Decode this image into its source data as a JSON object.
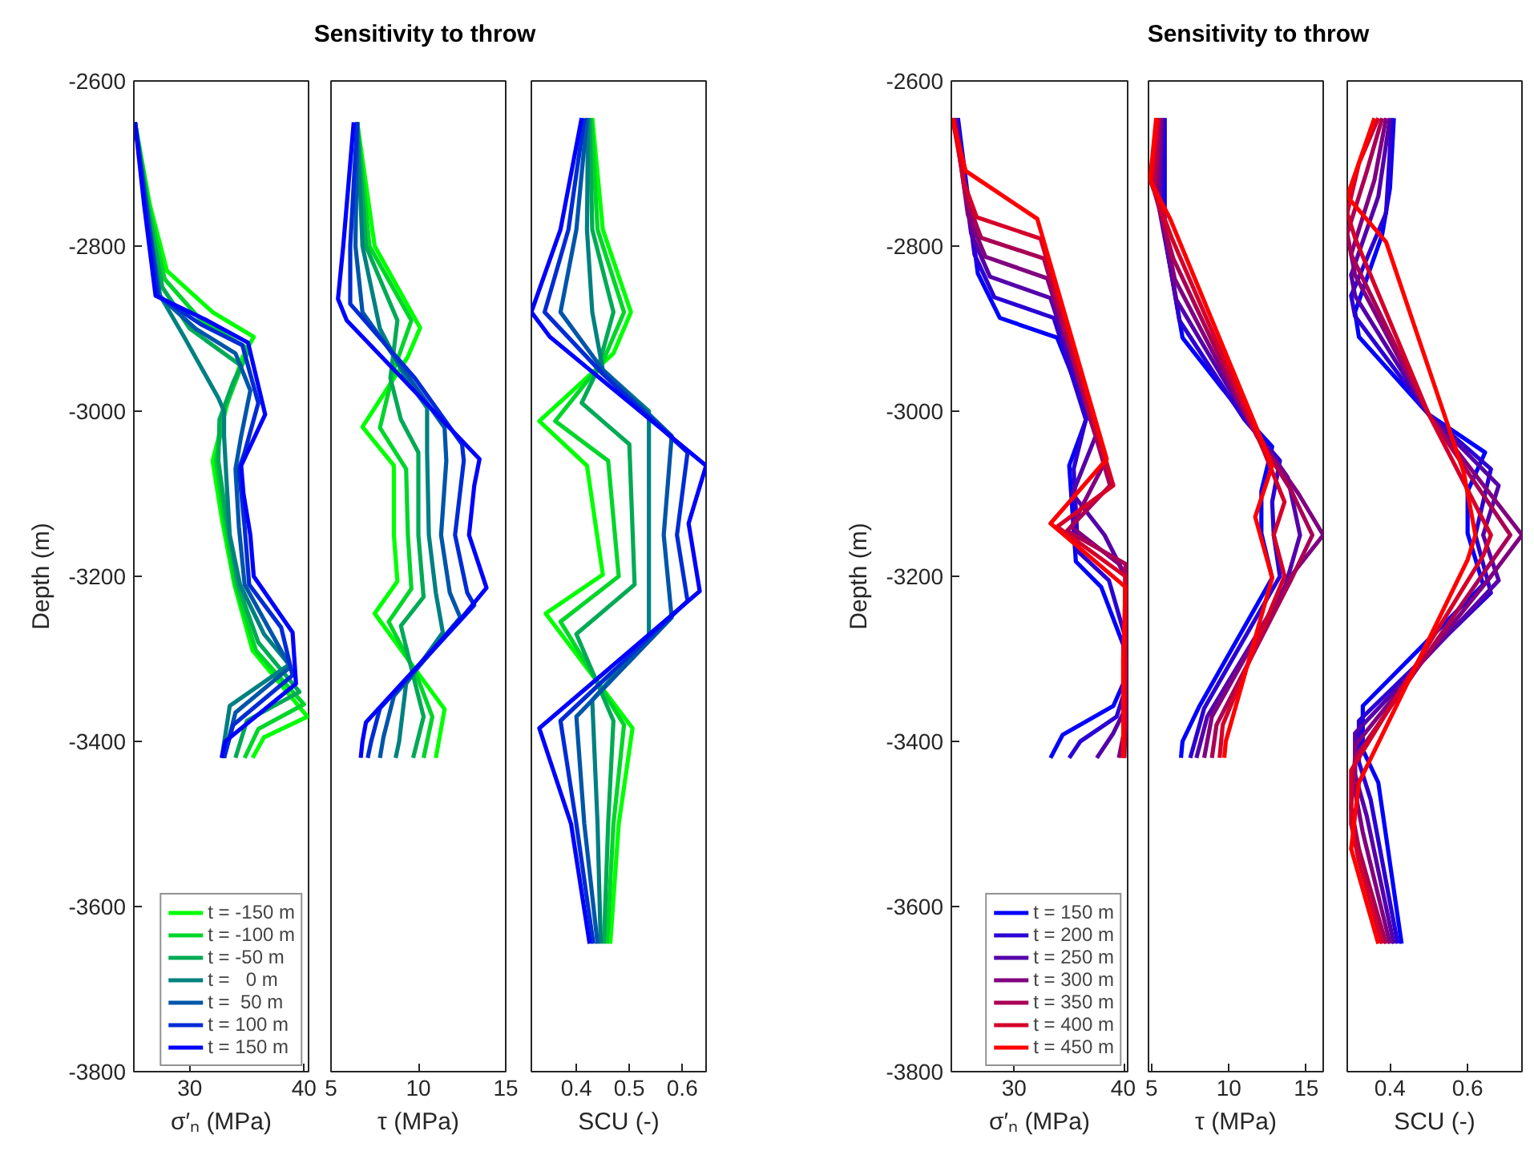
{
  "chart_data": [
    {
      "type": "line",
      "xlabel": "σ′ₙ (MPa)",
      "ylabel": "Depth (m)",
      "xlim": [
        25.1,
        40.4
      ],
      "ylim": [
        -3800,
        -2600
      ],
      "xticks": [
        30,
        40
      ],
      "yticks": [
        -3800,
        -3600,
        -3400,
        -3200,
        -3000,
        -2800,
        -2600
      ],
      "legend": "bottom right",
      "series": [
        {
          "name": "t = -150 m",
          "color": "#00ff00",
          "x": [
            25.2,
            26.5,
            28.0,
            32.0,
            35.6,
            34.6,
            33.3,
            32.0,
            32.8,
            33.9,
            35.5,
            40.3,
            36.5,
            35.5
          ],
          "values": [
            -2650,
            -2750,
            -2830,
            -2880,
            -2910,
            -2935,
            -2990,
            -3060,
            -3130,
            -3210,
            -3290,
            -3370,
            -3395,
            -3420
          ]
        },
        {
          "name": "t = -100 m",
          "color": "#00d52a",
          "x": [
            25.2,
            26.4,
            27.8,
            31.0,
            35.2,
            34.4,
            33.0,
            32.3,
            33.0,
            34.0,
            35.8,
            40.0,
            36.0,
            34.8
          ],
          "values": [
            -2650,
            -2750,
            -2840,
            -2890,
            -2925,
            -2950,
            -3000,
            -3060,
            -3130,
            -3210,
            -3290,
            -3355,
            -3385,
            -3420
          ]
        },
        {
          "name": "t = -50 m",
          "color": "#00aa55",
          "x": [
            25.2,
            26.3,
            27.6,
            30.0,
            34.5,
            33.8,
            32.6,
            32.5,
            33.2,
            34.2,
            36.0,
            39.6,
            35.0,
            34.0
          ],
          "values": [
            -2650,
            -2750,
            -2850,
            -2900,
            -2945,
            -2965,
            -3010,
            -3060,
            -3130,
            -3210,
            -3280,
            -3340,
            -3375,
            -3420
          ]
        },
        {
          "name": "t =   0 m",
          "color": "#008080",
          "x": [
            25.2,
            26.2,
            27.4,
            29.5,
            32.5,
            33.0,
            33.0,
            33.2,
            33.5,
            34.4,
            36.5,
            38.7,
            33.5,
            32.8
          ],
          "values": [
            -2650,
            -2750,
            -2860,
            -2910,
            -2984,
            -3000,
            -3030,
            -3080,
            -3150,
            -3210,
            -3270,
            -3307,
            -3357,
            -3420
          ]
        },
        {
          "name": "t =  50 m",
          "color": "#0055aa",
          "x": [
            25.2,
            26.2,
            27.3,
            30.5,
            34.0,
            35.3,
            34.5,
            34.0,
            34.3,
            34.8,
            37.0,
            38.8,
            34.0,
            33.0
          ],
          "values": [
            -2650,
            -2750,
            -2860,
            -2900,
            -2930,
            -2975,
            -3030,
            -3070,
            -3140,
            -3210,
            -3265,
            -3310,
            -3365,
            -3420
          ]
        },
        {
          "name": "t = 100 m",
          "color": "#002bd5",
          "x": [
            25.2,
            26.1,
            27.2,
            31.0,
            34.6,
            36.0,
            34.8,
            34.3,
            34.8,
            35.2,
            38.0,
            39.0,
            33.8,
            33.0
          ],
          "values": [
            -2650,
            -2750,
            -2860,
            -2895,
            -2920,
            -2990,
            -3050,
            -3070,
            -3140,
            -3210,
            -3262,
            -3320,
            -3380,
            -3420
          ]
        },
        {
          "name": "t = 150 m",
          "color": "#0000ff",
          "x": [
            25.2,
            26.0,
            27.0,
            31.5,
            35.1,
            36.6,
            34.5,
            34.7,
            35.3,
            35.6,
            39.0,
            39.3,
            33.1,
            32.8
          ],
          "values": [
            -2650,
            -2750,
            -2860,
            -2890,
            -2917,
            -3004,
            -3066,
            -3100,
            -3150,
            -3200,
            -3268,
            -3330,
            -3400,
            -3420
          ]
        }
      ]
    },
    {
      "type": "line",
      "title": "Sensitivity to throw",
      "xlabel": "τ (MPa)",
      "xlim": [
        5,
        15
      ],
      "ylim": [
        -3800,
        -2600
      ],
      "xticks": [
        5,
        10,
        15
      ],
      "yticks": [
        -3800,
        -3600,
        -3400,
        -3200,
        -3000,
        -2800,
        -2600
      ],
      "tick_labels": "x",
      "series": [
        {
          "color": "#00ff00",
          "x": [
            6.5,
            7.5,
            10.1,
            9.4,
            6.8,
            8.6,
            8.6,
            8.8,
            7.5,
            9.9,
            11.5,
            11.0
          ],
          "values": [
            -2650,
            -2800,
            -2899,
            -2934,
            -3019,
            -3066,
            -3150,
            -3206,
            -3245,
            -3315,
            -3361,
            -3420
          ]
        },
        {
          "color": "#00d52a",
          "x": [
            6.5,
            7.2,
            9.6,
            8.6,
            7.8,
            9.3,
            9.4,
            9.6,
            8.3,
            9.9,
            10.8,
            10.3
          ],
          "values": [
            -2650,
            -2800,
            -2890,
            -2950,
            -3020,
            -3070,
            -3150,
            -3215,
            -3255,
            -3320,
            -3370,
            -3420
          ]
        },
        {
          "color": "#00aa55",
          "x": [
            6.5,
            7.0,
            8.8,
            8.4,
            9.0,
            10.0,
            10.0,
            10.3,
            9.0,
            9.7,
            10.3,
            9.7
          ],
          "values": [
            -2650,
            -2800,
            -2890,
            -2960,
            -3010,
            -3050,
            -3150,
            -3225,
            -3260,
            -3320,
            -3370,
            -3420
          ]
        },
        {
          "color": "#008080",
          "x": [
            6.5,
            6.8,
            7.8,
            9.2,
            10.5,
            10.5,
            10.6,
            11.0,
            11.4,
            9.3,
            8.9,
            8.7
          ],
          "values": [
            -2650,
            -2800,
            -2900,
            -2957,
            -2996,
            -3050,
            -3150,
            -3220,
            -3268,
            -3330,
            -3400,
            -3420
          ]
        },
        {
          "color": "#0055aa",
          "x": [
            6.5,
            6.4,
            6.8,
            9.5,
            11.5,
            11.6,
            11.3,
            11.8,
            12.4,
            8.6,
            8.0,
            7.8
          ],
          "values": [
            -2650,
            -2800,
            -2880,
            -2960,
            -3020,
            -3060,
            -3150,
            -3220,
            -3250,
            -3345,
            -3395,
            -3420
          ]
        },
        {
          "color": "#002bd5",
          "x": [
            6.5,
            6.1,
            6.1,
            9.8,
            12.5,
            12.6,
            12.1,
            12.8,
            13.2,
            7.8,
            7.3,
            7.1
          ],
          "values": [
            -2650,
            -2800,
            -2870,
            -2960,
            -3040,
            -3060,
            -3150,
            -3220,
            -3235,
            -3360,
            -3400,
            -3420
          ]
        },
        {
          "color": "#0000ff",
          "x": [
            6.3,
            5.7,
            5.4,
            5.9,
            13.5,
            13.2,
            12.9,
            13.9,
            12.5,
            7.0,
            6.8,
            6.7
          ],
          "values": [
            -2650,
            -2800,
            -2864,
            -2890,
            -3058,
            -3090,
            -3150,
            -3214,
            -3250,
            -3377,
            -3400,
            -3420
          ]
        }
      ]
    },
    {
      "type": "line",
      "xlabel": "SCU (-)",
      "xlim": [
        0.315,
        0.645
      ],
      "ylim": [
        -3800,
        -2600
      ],
      "xticks": [
        0.4,
        0.5,
        0.6
      ],
      "yticks": [
        -3800,
        -3600,
        -3400,
        -3200,
        -3000,
        -2800,
        -2600
      ],
      "tick_labels": "x",
      "series": [
        {
          "color": "#00ff00",
          "x": [
            0.43,
            0.45,
            0.503,
            0.47,
            0.33,
            0.42,
            0.45,
            0.342,
            0.506,
            0.48,
            0.464
          ],
          "values": [
            -2645,
            -2780,
            -2880,
            -2930,
            -3012,
            -3066,
            -3198,
            -3245,
            -3384,
            -3500,
            -3645
          ]
        },
        {
          "color": "#00d52a",
          "x": [
            0.428,
            0.44,
            0.49,
            0.45,
            0.36,
            0.46,
            0.48,
            0.37,
            0.49,
            0.47,
            0.458
          ],
          "values": [
            -2645,
            -2780,
            -2880,
            -2940,
            -3012,
            -3060,
            -3200,
            -3255,
            -3380,
            -3500,
            -3645
          ]
        },
        {
          "color": "#00aa55",
          "x": [
            0.425,
            0.43,
            0.47,
            0.44,
            0.41,
            0.5,
            0.51,
            0.4,
            0.47,
            0.46,
            0.452
          ],
          "values": [
            -2645,
            -2780,
            -2880,
            -2950,
            -2990,
            -3040,
            -3210,
            -3270,
            -3375,
            -3500,
            -3645
          ]
        },
        {
          "color": "#008080",
          "x": [
            0.422,
            0.42,
            0.43,
            0.45,
            0.537,
            0.537,
            0.537,
            0.43,
            0.44,
            0.446
          ],
          "values": [
            -2645,
            -2780,
            -2880,
            -2950,
            -3000,
            -3150,
            -3272,
            -3350,
            -3500,
            -3645
          ]
        },
        {
          "color": "#0055aa",
          "x": [
            0.42,
            0.4,
            0.37,
            0.45,
            0.58,
            0.565,
            0.58,
            0.4,
            0.415,
            0.44
          ],
          "values": [
            -2645,
            -2780,
            -2880,
            -2950,
            -3030,
            -3150,
            -3250,
            -3370,
            -3500,
            -3645
          ]
        },
        {
          "color": "#002bd5",
          "x": [
            0.415,
            0.385,
            0.34,
            0.45,
            0.61,
            0.59,
            0.61,
            0.37,
            0.4,
            0.432
          ],
          "values": [
            -2645,
            -2780,
            -2880,
            -2955,
            -3050,
            -3150,
            -3230,
            -3375,
            -3500,
            -3645
          ]
        },
        {
          "color": "#0000ff",
          "x": [
            0.41,
            0.37,
            0.315,
            0.35,
            0.645,
            0.612,
            0.633,
            0.33,
            0.39,
            0.425
          ],
          "values": [
            -2645,
            -2780,
            -2880,
            -2910,
            -3066,
            -3136,
            -3218,
            -3384,
            -3500,
            -3645
          ]
        }
      ]
    },
    {
      "type": "line",
      "xlabel": "σ′ₙ (MPa)",
      "ylabel": "Depth (m)",
      "xlim": [
        24.3,
        40.3
      ],
      "ylim": [
        -3800,
        -2600
      ],
      "xticks": [
        30,
        40
      ],
      "yticks": [
        -3800,
        -3600,
        -3400,
        -3200,
        -3000,
        -2800,
        -2600
      ],
      "legend": "bottom right",
      "series": [
        {
          "name": "t = 150 m",
          "color": "#0000ff",
          "x": [
            24.9,
            26.7,
            28.7,
            33.9,
            36.7,
            35.0,
            35.6,
            37.9,
            39.9,
            39.9,
            39.0,
            34.4,
            33.3
          ],
          "values": [
            -2645,
            -2833,
            -2887,
            -2911,
            -3004,
            -3066,
            -3182,
            -3213,
            -3283,
            -3330,
            -3357,
            -3392,
            -3420
          ]
        },
        {
          "name": "t = 200 m",
          "color": "#2a00d5",
          "x": [
            24.8,
            26.4,
            28.2,
            33.6,
            36.5,
            35.4,
            35.8,
            38.6,
            40.0,
            40.0,
            39.3,
            36.0,
            35.0
          ],
          "values": [
            -2645,
            -2810,
            -2862,
            -2887,
            -3010,
            -3070,
            -3170,
            -3205,
            -3270,
            -3340,
            -3370,
            -3400,
            -3420
          ]
        },
        {
          "name": "t = 250 m",
          "color": "#5500aa",
          "x": [
            24.7,
            26.1,
            27.8,
            33.3,
            37.4,
            35.3,
            38.2,
            40.1,
            40.1,
            39.0,
            37.5
          ],
          "values": [
            -2645,
            -2785,
            -2837,
            -2863,
            -3030,
            -3100,
            -3150,
            -3200,
            -3360,
            -3390,
            -3420
          ]
        },
        {
          "name": "t = 300 m",
          "color": "#800080",
          "x": [
            24.6,
            25.8,
            27.4,
            33.0,
            38.3,
            35.2,
            39.5,
            40.1,
            40.1,
            39.5
          ],
          "values": [
            -2645,
            -2762,
            -2813,
            -2839,
            -3060,
            -3140,
            -3185,
            -3200,
            -3380,
            -3420
          ]
        },
        {
          "name": "t = 350 m",
          "color": "#aa0055",
          "x": [
            24.5,
            25.6,
            27.0,
            32.7,
            38.7,
            34.8,
            40.1,
            40.1,
            40.0
          ],
          "values": [
            -2645,
            -2740,
            -2790,
            -2815,
            -3090,
            -3145,
            -3185,
            -3380,
            -3420
          ]
        },
        {
          "name": "t = 400 m",
          "color": "#d5002a",
          "x": [
            24.4,
            25.5,
            26.6,
            32.4,
            39.0,
            33.9,
            40.1,
            40.0,
            39.9
          ],
          "values": [
            -2645,
            -2725,
            -2765,
            -2791,
            -3090,
            -3140,
            -3200,
            -3380,
            -3420
          ]
        },
        {
          "name": "t = 450 m",
          "color": "#ff0000",
          "x": [
            24.4,
            25.6,
            32.1,
            38.4,
            33.3,
            40.1,
            39.9,
            39.9
          ],
          "values": [
            -2645,
            -2709,
            -2767,
            -3058,
            -3136,
            -3213,
            -3300,
            -3420
          ]
        }
      ]
    },
    {
      "type": "line",
      "title": "Sensitivity to throw",
      "xlabel": "τ (MPa)",
      "xlim": [
        4.8,
        16.1
      ],
      "ylim": [
        -3800,
        -2600
      ],
      "xticks": [
        5,
        10,
        15
      ],
      "yticks": [
        -3800,
        -3600,
        -3400,
        -3200,
        -3000,
        -2800,
        -2600
      ],
      "tick_labels": "x",
      "series": [
        {
          "color": "#0000ff",
          "x": [
            5.85,
            5.85,
            7.0,
            10.9,
            12.8,
            12.1,
            12.1,
            12.8,
            8.1,
            7.0,
            6.9
          ],
          "values": [
            -2645,
            -2785,
            -2911,
            -3004,
            -3043,
            -3097,
            -3148,
            -3202,
            -3357,
            -3400,
            -3420
          ]
        },
        {
          "color": "#2a00d5",
          "x": [
            5.8,
            5.7,
            6.8,
            11.0,
            13.3,
            12.8,
            12.9,
            13.3,
            8.4,
            7.5
          ],
          "values": [
            -2645,
            -2770,
            -2890,
            -3010,
            -3060,
            -3110,
            -3150,
            -3200,
            -3360,
            -3420
          ]
        },
        {
          "color": "#5500aa",
          "x": [
            5.7,
            5.5,
            6.6,
            11.2,
            13.8,
            14.6,
            13.6,
            8.6,
            7.9
          ],
          "values": [
            -2645,
            -2755,
            -2865,
            -3010,
            -3080,
            -3150,
            -3215,
            -3370,
            -3420
          ]
        },
        {
          "color": "#800080",
          "x": [
            5.6,
            5.4,
            6.5,
            11.5,
            14.5,
            16.1,
            14.0,
            8.9,
            8.4
          ],
          "values": [
            -2645,
            -2740,
            -2840,
            -3020,
            -3100,
            -3150,
            -3200,
            -3370,
            -3420
          ]
        },
        {
          "color": "#aa0055",
          "x": [
            5.5,
            5.2,
            6.4,
            11.8,
            14.0,
            15.4,
            14.0,
            9.2,
            8.9
          ],
          "values": [
            -2645,
            -2735,
            -2815,
            -3030,
            -3095,
            -3150,
            -3205,
            -3380,
            -3420
          ]
        },
        {
          "color": "#d5002a",
          "x": [
            5.4,
            5.0,
            6.3,
            12.3,
            13.6,
            12.9,
            13.6,
            9.6,
            9.4
          ],
          "values": [
            -2645,
            -2725,
            -2790,
            -3050,
            -3110,
            -3150,
            -3200,
            -3380,
            -3420
          ]
        },
        {
          "color": "#ff0000",
          "x": [
            5.3,
            4.9,
            6.2,
            12.8,
            11.7,
            12.8,
            9.8,
            9.7
          ],
          "values": [
            -2645,
            -2720,
            -2767,
            -3066,
            -3128,
            -3202,
            -3400,
            -3420
          ]
        }
      ]
    },
    {
      "type": "line",
      "xlabel": "SCU (-)",
      "xlim": [
        0.29,
        0.74
      ],
      "ylim": [
        -3800,
        -2600
      ],
      "xticks": [
        0.4,
        0.6
      ],
      "yticks": [
        -3800,
        -3600,
        -3400,
        -3200,
        -3000,
        -2800,
        -2600
      ],
      "tick_labels": "x",
      "series": [
        {
          "color": "#0000ff",
          "x": [
            0.41,
            0.4,
            0.38,
            0.31,
            0.32,
            0.5,
            0.645,
            0.6,
            0.6,
            0.64,
            0.33,
            0.33,
            0.37,
            0.43
          ],
          "values": [
            -2645,
            -2730,
            -2786,
            -2880,
            -2910,
            -3004,
            -3050,
            -3097,
            -3148,
            -3210,
            -3357,
            -3410,
            -3450,
            -3645
          ]
        },
        {
          "color": "#2a00d5",
          "x": [
            0.405,
            0.39,
            0.3,
            0.31,
            0.5,
            0.66,
            0.62,
            0.66,
            0.32,
            0.32,
            0.35,
            0.42
          ],
          "values": [
            -2645,
            -2760,
            -2860,
            -2885,
            -3004,
            -3070,
            -3150,
            -3220,
            -3375,
            -3425,
            -3470,
            -3645
          ]
        },
        {
          "color": "#5500aa",
          "x": [
            0.4,
            0.37,
            0.3,
            0.31,
            0.5,
            0.68,
            0.64,
            0.68,
            0.31,
            0.31,
            0.34,
            0.41
          ],
          "values": [
            -2645,
            -2740,
            -2835,
            -2860,
            -3004,
            -3090,
            -3150,
            -3205,
            -3390,
            -3440,
            -3490,
            -3645
          ]
        },
        {
          "color": "#800080",
          "x": [
            0.39,
            0.36,
            0.3,
            0.31,
            0.5,
            0.74,
            0.66,
            0.31,
            0.31,
            0.33,
            0.4
          ],
          "values": [
            -2645,
            -2720,
            -2810,
            -2835,
            -3004,
            -3150,
            -3200,
            -3405,
            -3460,
            -3510,
            -3645
          ]
        },
        {
          "color": "#aa0055",
          "x": [
            0.38,
            0.34,
            0.29,
            0.3,
            0.5,
            0.71,
            0.65,
            0.31,
            0.3,
            0.32,
            0.39
          ],
          "values": [
            -2645,
            -2710,
            -2785,
            -2810,
            -3004,
            -3150,
            -3190,
            -3420,
            -3480,
            -3530,
            -3645
          ]
        },
        {
          "color": "#d5002a",
          "x": [
            0.37,
            0.32,
            0.29,
            0.31,
            0.5,
            0.66,
            0.64,
            0.3,
            0.3,
            0.32,
            0.38
          ],
          "values": [
            -2645,
            -2700,
            -2760,
            -2790,
            -3004,
            -3150,
            -3175,
            -3435,
            -3500,
            -3545,
            -3645
          ]
        },
        {
          "color": "#ff0000",
          "x": [
            0.36,
            0.29,
            0.39,
            0.59,
            0.62,
            0.6,
            0.32,
            0.3,
            0.37
          ],
          "values": [
            -2645,
            -2740,
            -2795,
            -3074,
            -3150,
            -3180,
            -3450,
            -3530,
            -3645
          ]
        }
      ]
    }
  ]
}
